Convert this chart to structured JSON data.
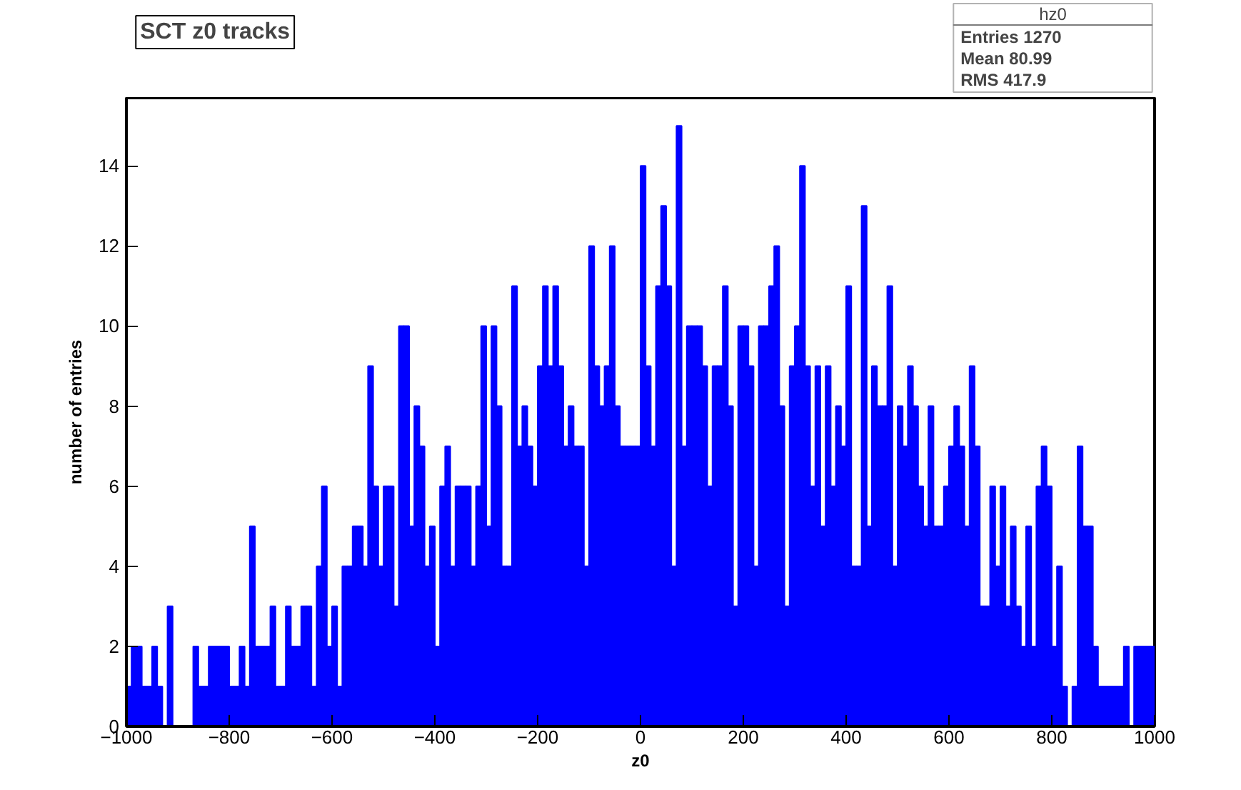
{
  "chart_data": {
    "type": "histogram",
    "title": "SCT z0 tracks",
    "xlabel": "z0",
    "ylabel": "number of entries",
    "legend_title": "hz0",
    "annotations": [
      "Entries 1270",
      "Mean 80.99",
      "RMS 417.9"
    ],
    "color": "#0000ff",
    "bins": [
      -1000,
      -990,
      -980,
      -970,
      -960,
      -950,
      -940,
      -930,
      -920,
      -910,
      -900,
      -890,
      -880,
      -870,
      -860,
      -850,
      -840,
      -830,
      -820,
      -810,
      -800,
      -790,
      -780,
      -770,
      -760,
      -750,
      -740,
      -730,
      -720,
      -710,
      -700,
      -690,
      -680,
      -670,
      -660,
      -650,
      -640,
      -630,
      -620,
      -610,
      -600,
      -590,
      -580,
      -570,
      -560,
      -550,
      -540,
      -530,
      -520,
      -510,
      -500,
      -490,
      -480,
      -470,
      -460,
      -450,
      -440,
      -430,
      -420,
      -410,
      -400,
      -390,
      -380,
      -370,
      -360,
      -350,
      -340,
      -330,
      -320,
      -310,
      -300,
      -290,
      -280,
      -270,
      -260,
      -250,
      -240,
      -230,
      -220,
      -210,
      -200,
      -190,
      -180,
      -170,
      -160,
      -150,
      -140,
      -130,
      -120,
      -110,
      -100,
      -90,
      -80,
      -70,
      -60,
      -50,
      -40,
      -30,
      -20,
      -10,
      0,
      10,
      20,
      30,
      40,
      50,
      60,
      70,
      80,
      90,
      100,
      110,
      120,
      130,
      140,
      150,
      160,
      170,
      180,
      190,
      200,
      210,
      220,
      230,
      240,
      250,
      260,
      270,
      280,
      290,
      300,
      310,
      320,
      330,
      340,
      350,
      360,
      370,
      380,
      390,
      400,
      410,
      420,
      430,
      440,
      450,
      460,
      470,
      480,
      490,
      500,
      510,
      520,
      530,
      540,
      550,
      560,
      570,
      580,
      590,
      600,
      610,
      620,
      630,
      640,
      650,
      660,
      670,
      680,
      690,
      700,
      710,
      720,
      730,
      740,
      750,
      760,
      770,
      780,
      790,
      800,
      810,
      820,
      830,
      840,
      850,
      860,
      870,
      880,
      890,
      900,
      910,
      920,
      930,
      940,
      950,
      960,
      970,
      980,
      990,
      1000
    ],
    "values": [
      1,
      2,
      2,
      1,
      1,
      2,
      1,
      0,
      3,
      0,
      0,
      0,
      0,
      2,
      1,
      1,
      2,
      2,
      2,
      2,
      1,
      1,
      2,
      1,
      5,
      2,
      2,
      2,
      3,
      1,
      1,
      3,
      2,
      2,
      3,
      3,
      1,
      4,
      6,
      2,
      3,
      1,
      4,
      4,
      5,
      5,
      4,
      9,
      6,
      4,
      6,
      6,
      3,
      10,
      10,
      5,
      8,
      7,
      4,
      5,
      2,
      6,
      7,
      4,
      6,
      6,
      6,
      4,
      6,
      10,
      5,
      10,
      8,
      4,
      4,
      11,
      7,
      8,
      7,
      6,
      9,
      11,
      9,
      11,
      9,
      7,
      8,
      7,
      7,
      4,
      12,
      9,
      8,
      9,
      12,
      8,
      7,
      7,
      7,
      7,
      14,
      9,
      7,
      11,
      13,
      11,
      4,
      15,
      7,
      10,
      10,
      10,
      9,
      6,
      9,
      9,
      11,
      8,
      3,
      10,
      10,
      9,
      4,
      10,
      10,
      11,
      12,
      8,
      3,
      9,
      10,
      14,
      9,
      6,
      9,
      5,
      9,
      6,
      8,
      7,
      11,
      4,
      4,
      13,
      5,
      9,
      8,
      8,
      11,
      4,
      8,
      7,
      9,
      8,
      6,
      5,
      8,
      5,
      5,
      6,
      7,
      8,
      7,
      5,
      9,
      7,
      3,
      3,
      6,
      4,
      6,
      3,
      5,
      3,
      2,
      5,
      2,
      6,
      7,
      6,
      2,
      4,
      1,
      0,
      1,
      7,
      5,
      5,
      2,
      1,
      1,
      1,
      1,
      1,
      2,
      0,
      2,
      2,
      2,
      2
    ],
    "xlim": [
      -1000,
      1000
    ],
    "ylim": [
      0,
      15.7
    ],
    "xticks": [
      -1000,
      -800,
      -600,
      -400,
      -200,
      0,
      200,
      400,
      600,
      800,
      1000
    ],
    "yticks": [
      0,
      2,
      4,
      6,
      8,
      10,
      12,
      14
    ],
    "grid": false
  }
}
